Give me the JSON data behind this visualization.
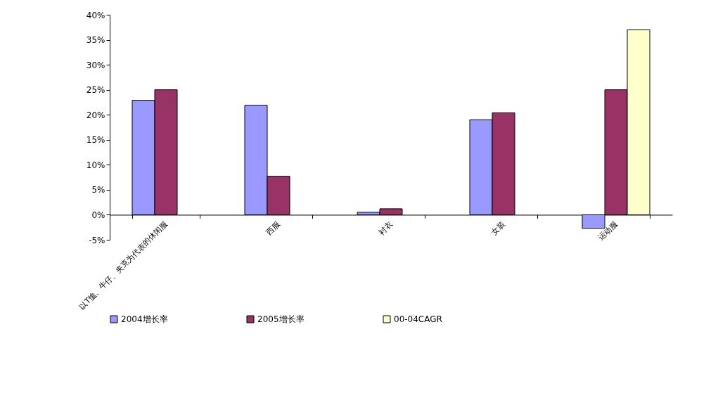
{
  "chart_data": {
    "type": "bar",
    "categories": [
      "以T恤、牛仔、夹克为代表的休闲服",
      "西服",
      "衬衣",
      "女装",
      "运动服"
    ],
    "series": [
      {
        "name": "2004增长率",
        "color": "#9999ff",
        "values": [
          22.9,
          21.9,
          0.5,
          19.0,
          -2.7
        ]
      },
      {
        "name": "2005增长率",
        "color": "#993366",
        "values": [
          25.0,
          7.7,
          1.2,
          20.4,
          25.0
        ]
      },
      {
        "name": "00-04CAGR",
        "color": "#ffffcc",
        "values": [
          null,
          null,
          null,
          null,
          37.0
        ]
      }
    ],
    "ylim": [
      -5,
      40
    ],
    "yticks": [
      {
        "value": -5,
        "label": "-5%"
      },
      {
        "value": 0,
        "label": "0%"
      },
      {
        "value": 5,
        "label": "5%"
      },
      {
        "value": 10,
        "label": "10%"
      },
      {
        "value": 15,
        "label": "15%"
      },
      {
        "value": 20,
        "label": "20%"
      },
      {
        "value": 25,
        "label": "25%"
      },
      {
        "value": 30,
        "label": "30%"
      },
      {
        "value": 35,
        "label": "35%"
      },
      {
        "value": 40,
        "label": "40%"
      }
    ],
    "grid": false,
    "legend": "bottom"
  }
}
